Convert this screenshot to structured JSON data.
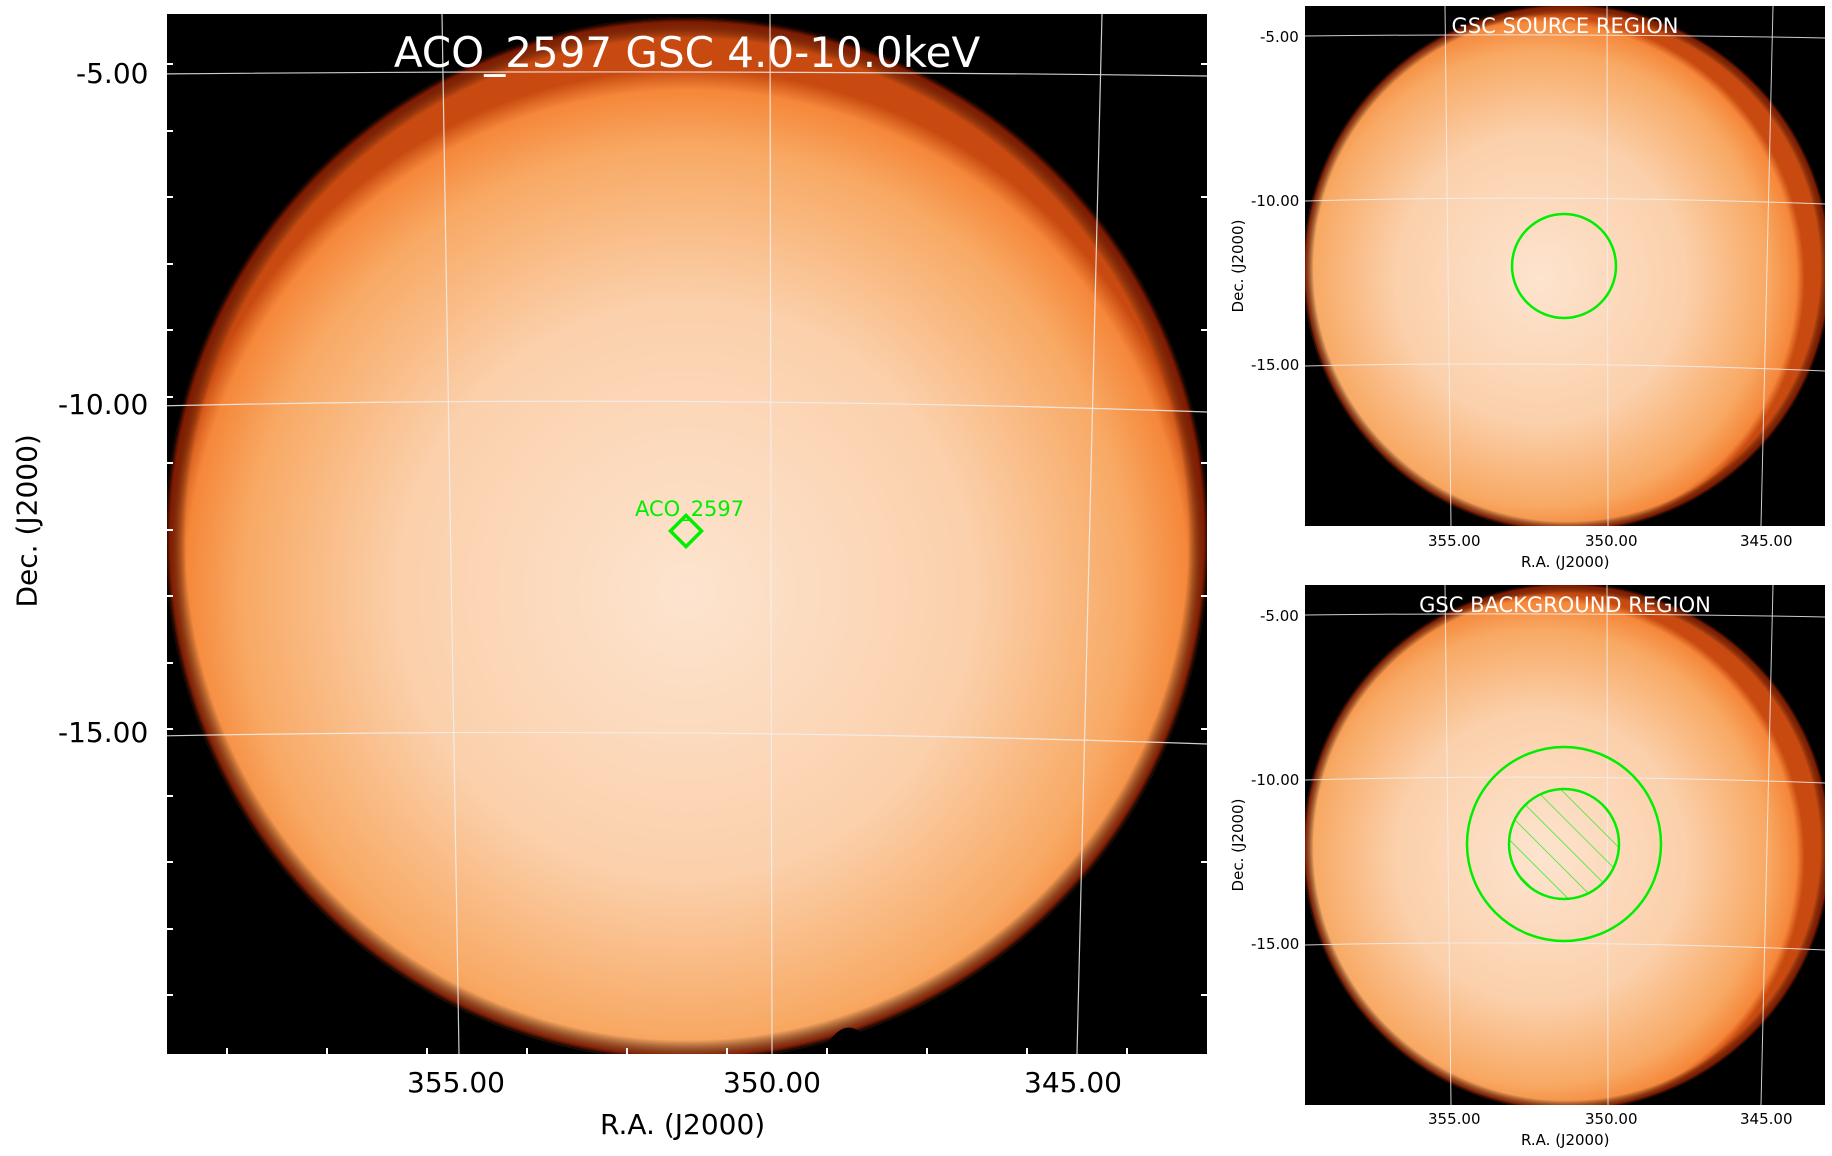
{
  "main": {
    "title": "ACO_2597 GSC 4.0-10.0keV",
    "xlabel": "R.A. (J2000)",
    "ylabel": "Dec. (J2000)",
    "xticks": [
      "355.00",
      "350.00",
      "345.00"
    ],
    "yticks": [
      "-5.00",
      "-10.00",
      "-15.00"
    ],
    "source_label": "ACO_2597"
  },
  "source_panel": {
    "title": "GSC SOURCE REGION",
    "xlabel": "R.A. (J2000)",
    "ylabel": "Dec. (J2000)",
    "xticks": [
      "355.00",
      "350.00",
      "345.00"
    ],
    "yticks": [
      "-5.00",
      "-10.00",
      "-15.00"
    ]
  },
  "background_panel": {
    "title": "GSC BACKGROUND REGION",
    "xlabel": "R.A. (J2000)",
    "ylabel": "Dec. (J2000)",
    "xticks": [
      "355.00",
      "350.00",
      "345.00"
    ],
    "yticks": [
      "-5.00",
      "-10.00",
      "-15.00"
    ]
  },
  "colors": {
    "disk_center": "#fde2cc",
    "disk_edge": "#f5873a",
    "rim": "#8a1a00",
    "region": "#00ee00",
    "grid": "#e8e8e8"
  }
}
